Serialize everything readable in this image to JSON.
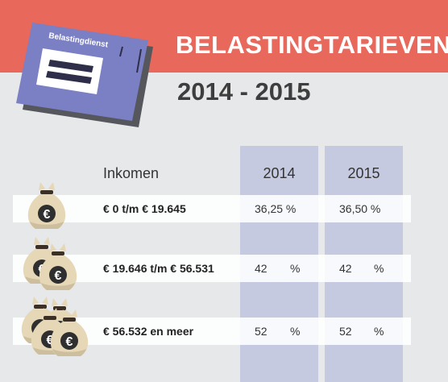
{
  "header": {
    "title": "BELASTINGTARIEVEN",
    "period": "2014 - 2015",
    "envelope_label": "Belastingdienst"
  },
  "table": {
    "columns": [
      "Inkomen",
      "2014",
      "2015"
    ],
    "rows": [
      {
        "bracket": "€ 0 t/m € 19.645",
        "rate_2014": "36,25 %",
        "rate_2015": "36,50 %",
        "bags": 1
      },
      {
        "bracket": "€ 19.646 t/m € 56.531",
        "rate_2014_value": "42",
        "rate_2015_value": "42",
        "percent": "%",
        "bags": 2
      },
      {
        "bracket": "€ 56.532 en meer",
        "rate_2014_value": "52",
        "rate_2015_value": "52",
        "percent": "%",
        "bags": 3
      }
    ]
  },
  "colors": {
    "banner": "#e8685b",
    "background": "#e6e8ea",
    "column_band": "#c6cae0",
    "envelope": "#7b7fc4",
    "money_bag": "#e6d7b6"
  },
  "icons": [
    "envelope-icon",
    "money-bag-icon",
    "euro-icon"
  ]
}
